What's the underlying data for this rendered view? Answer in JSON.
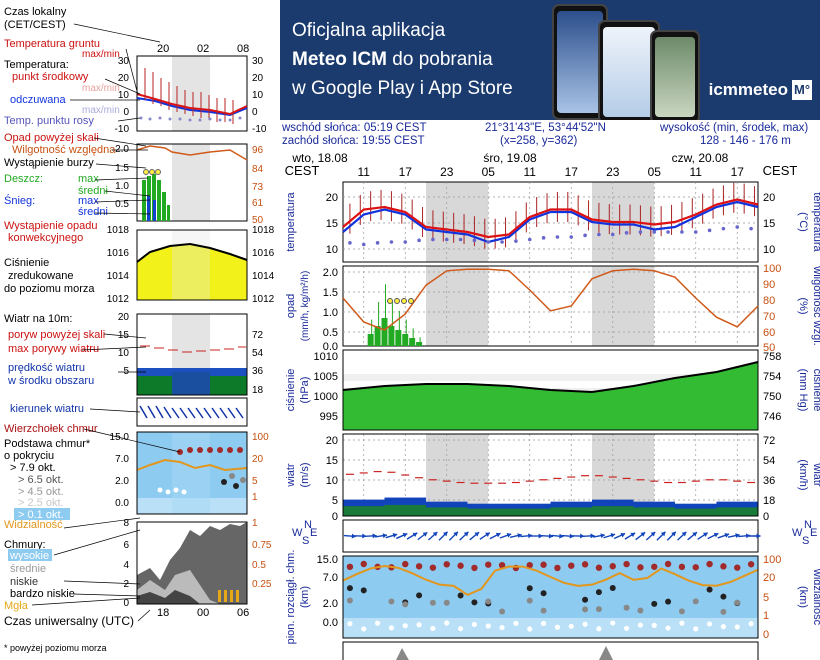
{
  "banner": {
    "line1": "Oficjalna aplikacja",
    "line2_bold": "Meteo ICM",
    "line2_rest": " do pobrania",
    "line3": "w Google Play i App Store",
    "logo": "icmmeteo",
    "logo_box": "M°"
  },
  "info": {
    "sunrise": "wschód słońca: 05:19 CEST",
    "sunset": "zachód słońca: 19:55 CEST",
    "coords": "21°31'43\"E, 53°44'52\"N",
    "grid": "(x=258,  y=362)",
    "elev_label": "wysokość (min, środek, max)",
    "elev_values": "128 - 146 - 176 m"
  },
  "legend": {
    "local_time": "Czas lokalny",
    "local_time_zone": "(CET/CEST)",
    "hours_top": [
      "20",
      "02",
      "08"
    ],
    "hours_bottom": [
      "18",
      "00",
      "06"
    ],
    "ground_temp": "Temperatura gruntu",
    "maxmin_red": "max/min",
    "temperature": "Temperatura:",
    "mid_point": "punkt środkowy",
    "maxmin_pink": "max/min",
    "apparent": "odczuwana",
    "maxmin_lav": "max/min",
    "dewpoint": "Temp. punktu rosy",
    "temp_left": [
      "30",
      "20",
      "10",
      "0",
      "-10"
    ],
    "temp_right": [
      "30",
      "20",
      "10",
      "0",
      "-10"
    ],
    "precip_over": "Opad powyżej skali",
    "rh": "Wilgotność względna",
    "storm": "Wystąpienie burzy",
    "rain": "Deszcz:",
    "max": "max",
    "mean": "średni",
    "snow": "Śnieg:",
    "precip_event": "Wystąpienie opadu",
    "convective": "konwekcyjnego",
    "precip_left": [
      "2.0",
      "1.5",
      "1.0",
      "0.5"
    ],
    "precip_right": [
      "96",
      "84",
      "73",
      "61",
      "50"
    ],
    "pressure_left": [
      "1018",
      "1016",
      "1014",
      "1012"
    ],
    "pressure_right": [
      "1018",
      "1016",
      "1014",
      "1012"
    ],
    "pressure1": "Ciśnienie",
    "pressure2": "zredukowane",
    "pressure3": "do poziomu morza",
    "wind_10m": "Wiatr na 10m:",
    "gust_over": "poryw powyżej skali",
    "gust_max": "max porywy wiatru",
    "wind_speed": "prędkość wiatru",
    "wind_area": "w środku obszaru",
    "wind_left": [
      "20",
      "15",
      "10",
      "5"
    ],
    "wind_right": [
      "72",
      "54",
      "36",
      "18"
    ],
    "wind_dir": "kierunek wiatru",
    "cloud_top": "Wierzchołek chmur",
    "cloud_base": "Podstawa chmur*",
    "by_cover": "o pokryciu",
    "okt79": "> 7.9 okt.",
    "okt65": "> 6.5 okt.",
    "okt45": "> 4.5 okt.",
    "okt25": "> 2.5 okt.",
    "okt01": "> 0.1 okt.",
    "cb_left": [
      "15.0",
      "7.0",
      "2.0",
      "0.0"
    ],
    "cb_right": [
      "100",
      "20",
      "5",
      "1"
    ],
    "visibility": "Widzialność",
    "vis_left": "8",
    "vis_right": "1",
    "clouds": "Chmury:",
    "high": "wysokie",
    "middle": "średnie",
    "low": "niskie",
    "very_low": "bardzo niskie",
    "fog": "Mgła",
    "cl_left": [
      "6",
      "4",
      "2",
      "0"
    ],
    "cl_right": [
      "0.75",
      "0.5",
      "0.25"
    ],
    "utc": "Czas uniwersalny (UTC)",
    "footnote": "* powyżej poziomu morza"
  },
  "main": {
    "tz": "CEST",
    "days": [
      "wto, 18.08",
      "śro, 19.08",
      "czw, 20.08"
    ],
    "hours": [
      "11",
      "17",
      "23",
      "05",
      "11",
      "17",
      "23",
      "05",
      "11",
      "17"
    ],
    "temp_left_label": "temperatura",
    "temp_right_label": "temperatura",
    "temp_unit": "(°C)",
    "temp_ticks": [
      "20",
      "15",
      "10"
    ],
    "precip_label": "opad",
    "precip_unit": "(mm/h, kg/m²/h)",
    "precip_ticks": [
      "2.0",
      "1.5",
      "1.0",
      "0.5",
      "0.0"
    ],
    "rh_ticks": [
      "100",
      "90",
      "80",
      "70",
      "60",
      "50"
    ],
    "rh_unit": "(%)",
    "rh_label": "wilgotność wzgl.",
    "press_label": "ciśnienie",
    "press_unit": "(hPa)",
    "press_ticks": [
      "1010",
      "1005",
      "1000",
      "995"
    ],
    "press_r_ticks": [
      "758",
      "754",
      "750",
      "746"
    ],
    "press_r_unit": "(mm Hg)",
    "press_r_label": "ciśnienie",
    "wind_label": "wiatr",
    "wind_unit": "(m/s)",
    "wind_ticks": [
      "20",
      "15",
      "10",
      "5",
      "0"
    ],
    "wind_r_ticks": [
      "72",
      "54",
      "36",
      "18",
      "0"
    ],
    "wind_r_unit": "(km/h)",
    "wind_r_label": "wiatr",
    "compass": [
      "W",
      "S",
      "N",
      "E"
    ],
    "cb_label": "pion. rozciągł. chm.",
    "cb_unit": "(km)",
    "cb_ticks": [
      "15.0",
      "7.0",
      "2.0",
      "0.0"
    ],
    "vis_ticks": [
      "100",
      "20",
      "5",
      "1",
      "0"
    ],
    "vis_unit": "(km)",
    "vis_label": "widzialność"
  },
  "colors": {
    "temp_red": "#dd1111",
    "temp_blue": "#1133dd",
    "dew": "#6666cc",
    "rh": "#d05a1a",
    "precip": "#22aa22",
    "pressure_fill": "#33bb33",
    "wind": "#1144bb",
    "night": "#d8d8d8",
    "cloud_bg": "#8ecbf0"
  },
  "chart_data": [
    {
      "type": "line",
      "title": "temperatura",
      "x_hours": [
        8,
        11,
        14,
        17,
        20,
        23,
        26,
        29,
        32,
        35,
        38,
        41,
        44,
        47,
        50,
        53,
        56,
        59,
        62,
        65,
        68
      ],
      "series": [
        {
          "name": "",
          "values": [
            15,
            18.5,
            19,
            18,
            15,
            14.5,
            14,
            13,
            13.5,
            17,
            18.5,
            18.5,
            16.5,
            16,
            16,
            15.5,
            16,
            17.5,
            19.5,
            20.5,
            19.5
          ]
        },
        {
          "name": "",
          "values": [
            14,
            17.5,
            18.5,
            17.5,
            14.5,
            14,
            13.5,
            12,
            13,
            16.5,
            18,
            18,
            16,
            15.5,
            15.5,
            14.5,
            15,
            17,
            19,
            20,
            19
          ]
        },
        {
          "name": "",
          "values": [
            12,
            11.5,
            12,
            12,
            12.5,
            12.5,
            12.5,
            12,
            12,
            12.5,
            13,
            13,
            13.5,
            13.5,
            14,
            14,
            14,
            14,
            14.5,
            15,
            14.5
          ]
        }
      ],
      "ylim": [
        8,
        24
      ]
    },
    {
      "type": "bar",
      "title": "opad",
      "x_hours": [
        12,
        13,
        14,
        15,
        16,
        17,
        18,
        19
      ],
      "values": [
        0.3,
        0.5,
        0.7,
        0.5,
        0.4,
        0.3,
        0.2,
        0.1
      ],
      "rh_x_hours": [
        8,
        11,
        14,
        17,
        20,
        23,
        26,
        29,
        32,
        35,
        38,
        41,
        44,
        47,
        50,
        53,
        56,
        59,
        62,
        65,
        68
      ],
      "rh_values": [
        80,
        65,
        60,
        70,
        88,
        97,
        98,
        98,
        97,
        85,
        72,
        75,
        92,
        97,
        98,
        97,
        93,
        80,
        68,
        62,
        75
      ],
      "ylim": [
        0,
        2
      ],
      "rh_ylim": [
        50,
        100
      ]
    },
    {
      "type": "area",
      "title": "ciśnienie",
      "x_hours": [
        8,
        14,
        20,
        26,
        32,
        38,
        44,
        50,
        56,
        62,
        68
      ],
      "values": [
        1002,
        1003,
        1003.5,
        1003.5,
        1003,
        1002,
        1001.5,
        1003,
        1005,
        1006.5,
        1009
      ],
      "ylim": [
        992,
        1012
      ]
    },
    {
      "type": "line",
      "title": "wiatr",
      "x_hours": [
        8,
        14,
        20,
        26,
        32,
        38,
        44,
        50,
        56,
        62,
        68
      ],
      "series": [
        {
          "name": "",
          "values": [
            4,
            4.5,
            3.5,
            3,
            3,
            3.5,
            4,
            3.5,
            3,
            3.5,
            3
          ]
        },
        {
          "name": "",
          "values": [
            10,
            11,
            9,
            8,
            8,
            9,
            10,
            9,
            8,
            9,
            8
          ]
        }
      ],
      "ylim": [
        0,
        20
      ]
    }
  ]
}
